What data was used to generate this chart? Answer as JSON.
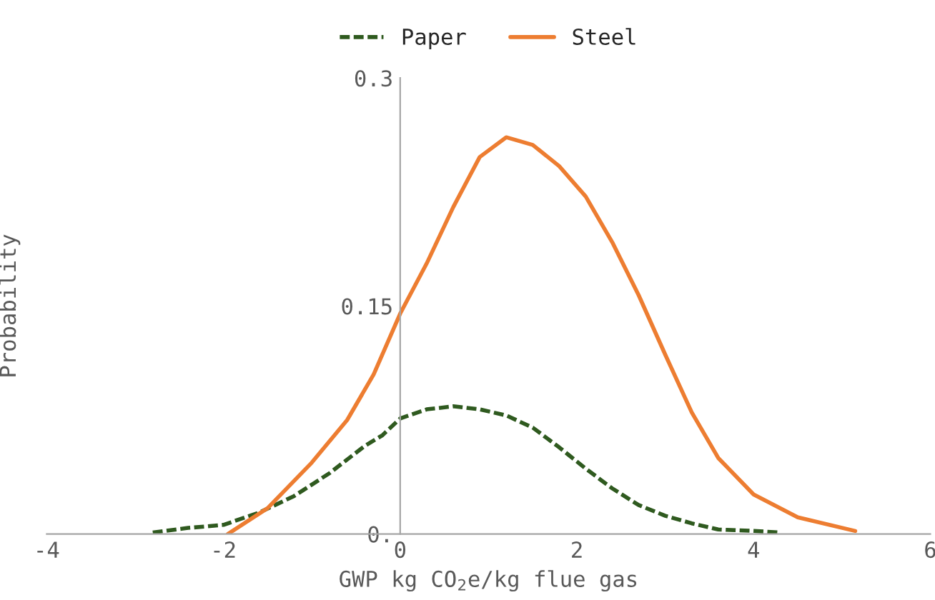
{
  "chart_data": {
    "type": "line",
    "xlabel": "GWP kg CO$_{2}$e/kg flue gas",
    "ylabel": "Probability",
    "series": [
      {
        "name": "Paper",
        "color": "#2f5a1f",
        "line_style": "dashed",
        "x": [
          -2.8,
          -2.4,
          -2.0,
          -1.6,
          -1.2,
          -0.8,
          -0.4,
          -0.2,
          0.0,
          0.3,
          0.6,
          0.9,
          1.2,
          1.5,
          1.8,
          2.1,
          2.4,
          2.7,
          3.0,
          3.3,
          3.6,
          4.0,
          4.3
        ],
        "values": [
          0.001,
          0.004,
          0.006,
          0.014,
          0.025,
          0.04,
          0.058,
          0.065,
          0.076,
          0.082,
          0.084,
          0.082,
          0.078,
          0.07,
          0.057,
          0.043,
          0.03,
          0.019,
          0.012,
          0.007,
          0.003,
          0.002,
          0.001
        ]
      },
      {
        "name": "Steel",
        "color": "#ed7d31",
        "line_style": "solid",
        "x": [
          -1.95,
          -1.5,
          -1.0,
          -0.6,
          -0.3,
          0.0,
          0.3,
          0.6,
          0.9,
          1.2,
          1.5,
          1.8,
          2.1,
          2.4,
          2.7,
          3.0,
          3.3,
          3.6,
          4.0,
          4.5,
          5.15
        ],
        "values": [
          0.0,
          0.017,
          0.047,
          0.075,
          0.105,
          0.145,
          0.178,
          0.215,
          0.248,
          0.261,
          0.256,
          0.242,
          0.222,
          0.192,
          0.157,
          0.118,
          0.08,
          0.05,
          0.026,
          0.011,
          0.002
        ]
      }
    ],
    "xlim": [
      -4,
      6
    ],
    "xticks": [
      -4,
      -2,
      0,
      2,
      4,
      6
    ],
    "ylim": [
      0,
      0.3
    ],
    "yticks": [
      {
        "value": 0,
        "label": "0."
      },
      0.15,
      0.3
    ],
    "legend": "top",
    "grid": false
  }
}
